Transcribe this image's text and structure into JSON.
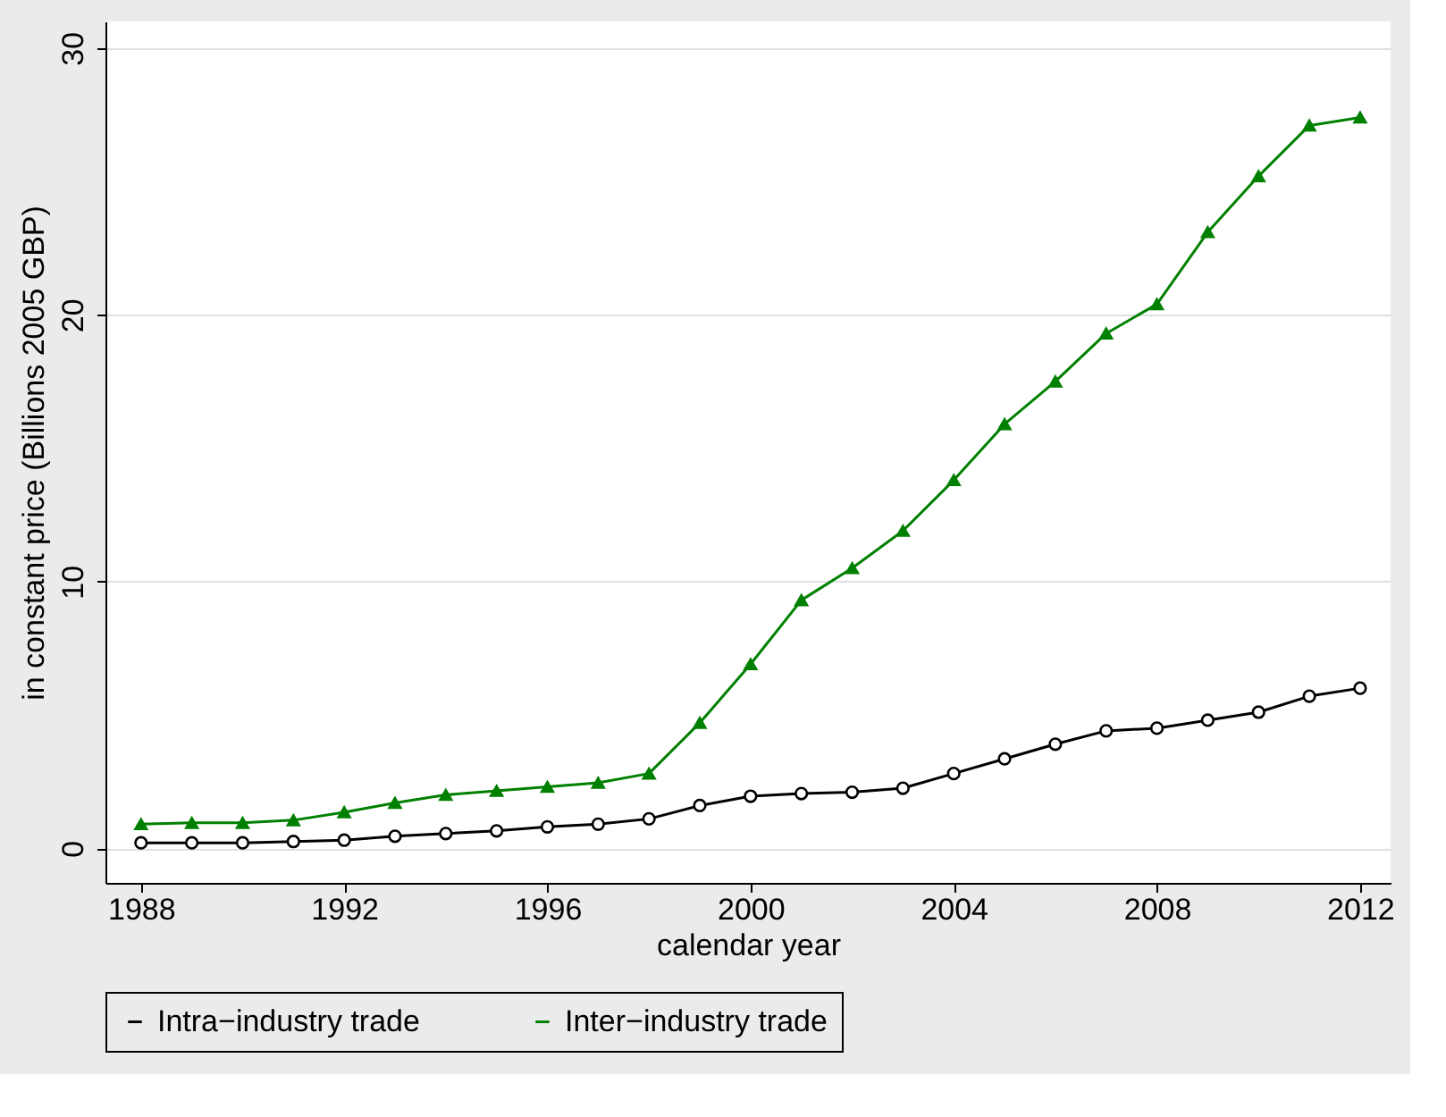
{
  "chart_data": {
    "type": "line",
    "xlabel": "calendar year",
    "ylabel": "in constant price (Billions 2005 GBP)",
    "x": [
      1988,
      1989,
      1990,
      1991,
      1992,
      1993,
      1994,
      1995,
      1996,
      1997,
      1998,
      1999,
      2000,
      2001,
      2002,
      2003,
      2004,
      2005,
      2006,
      2007,
      2008,
      2009,
      2010,
      2011,
      2012
    ],
    "series": [
      {
        "name": "Intra−industry trade",
        "color": "#000000",
        "marker": "circle",
        "values": [
          0.2,
          0.2,
          0.2,
          0.25,
          0.3,
          0.45,
          0.55,
          0.65,
          0.8,
          0.9,
          1.1,
          1.6,
          1.95,
          2.05,
          2.1,
          2.25,
          2.8,
          3.35,
          3.9,
          4.4,
          4.5,
          4.8,
          5.1,
          5.7,
          6.0
        ]
      },
      {
        "name": "Inter−industry trade",
        "color": "#008000",
        "marker": "triangle",
        "values": [
          0.9,
          0.95,
          0.95,
          1.05,
          1.35,
          1.7,
          2.0,
          2.15,
          2.3,
          2.45,
          2.8,
          4.7,
          6.9,
          9.3,
          10.5,
          11.9,
          13.8,
          15.9,
          17.5,
          19.3,
          20.4,
          23.1,
          25.2,
          27.1,
          27.4
        ]
      }
    ],
    "xlim": [
      1987.3,
      2012.6
    ],
    "xticks": [
      1988,
      1992,
      1996,
      2000,
      2004,
      2008,
      2012
    ],
    "ylim": [
      -1.3,
      31
    ],
    "yticks": [
      0,
      10,
      20,
      30
    ],
    "grid": "y",
    "legend": "bottom",
    "line_style": "solid"
  }
}
